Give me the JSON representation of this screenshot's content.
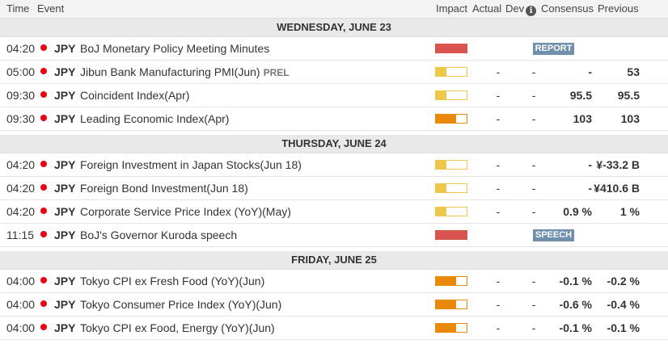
{
  "header": {
    "time": "Time",
    "event": "Event",
    "impact": "Impact",
    "actual": "Actual",
    "dev": "Dev",
    "info_glyph": "i",
    "consensus": "Consensus",
    "previous": "Previous"
  },
  "impact_colors": {
    "high": "#d9534f",
    "medium": "#e8890c",
    "low": "#eec84a"
  },
  "days": [
    {
      "label": "WEDNESDAY, JUNE 23",
      "events": [
        {
          "time": "04:20",
          "currency": "JPY",
          "name": "BoJ Monetary Policy Meeting Minutes",
          "tag": "",
          "impact": "high",
          "impact_level": 1.0,
          "actual": "",
          "dev": "",
          "consensus": "",
          "previous": "",
          "badge": "REPORT"
        },
        {
          "time": "05:00",
          "currency": "JPY",
          "name": "Jibun Bank Manufacturing PMI(Jun)",
          "tag": "PREL",
          "impact": "low",
          "impact_level": 0.33,
          "actual": "-",
          "dev": "-",
          "consensus": "-",
          "previous": "53",
          "badge": ""
        },
        {
          "time": "09:30",
          "currency": "JPY",
          "name": "Coincident Index(Apr)",
          "tag": "",
          "impact": "low",
          "impact_level": 0.33,
          "actual": "-",
          "dev": "-",
          "consensus": "95.5",
          "previous": "95.5",
          "badge": ""
        },
        {
          "time": "09:30",
          "currency": "JPY",
          "name": "Leading Economic Index(Apr)",
          "tag": "",
          "impact": "medium",
          "impact_level": 0.66,
          "actual": "-",
          "dev": "-",
          "consensus": "103",
          "previous": "103",
          "badge": ""
        }
      ]
    },
    {
      "label": "THURSDAY, JUNE 24",
      "events": [
        {
          "time": "04:20",
          "currency": "JPY",
          "name": "Foreign Investment in Japan Stocks(Jun 18)",
          "tag": "",
          "impact": "low",
          "impact_level": 0.33,
          "actual": "-",
          "dev": "-",
          "consensus": "-",
          "previous": "¥-33.2 B",
          "badge": ""
        },
        {
          "time": "04:20",
          "currency": "JPY",
          "name": "Foreign Bond Investment(Jun 18)",
          "tag": "",
          "impact": "low",
          "impact_level": 0.33,
          "actual": "-",
          "dev": "-",
          "consensus": "-",
          "previous": "¥410.6 B",
          "badge": ""
        },
        {
          "time": "04:20",
          "currency": "JPY",
          "name": "Corporate Service Price Index (YoY)(May)",
          "tag": "",
          "impact": "low",
          "impact_level": 0.33,
          "actual": "-",
          "dev": "-",
          "consensus": "0.9 %",
          "previous": "1 %",
          "badge": ""
        },
        {
          "time": "11:15",
          "currency": "JPY",
          "name": "BoJ's Governor Kuroda speech",
          "tag": "",
          "impact": "high",
          "impact_level": 1.0,
          "actual": "",
          "dev": "",
          "consensus": "",
          "previous": "",
          "badge": "SPEECH"
        }
      ]
    },
    {
      "label": "FRIDAY, JUNE 25",
      "events": [
        {
          "time": "04:00",
          "currency": "JPY",
          "name": "Tokyo CPI ex Fresh Food (YoY)(Jun)",
          "tag": "",
          "impact": "medium",
          "impact_level": 0.66,
          "actual": "-",
          "dev": "-",
          "consensus": "-0.1 %",
          "previous": "-0.2 %",
          "badge": ""
        },
        {
          "time": "04:00",
          "currency": "JPY",
          "name": "Tokyo Consumer Price Index (YoY)(Jun)",
          "tag": "",
          "impact": "medium",
          "impact_level": 0.66,
          "actual": "-",
          "dev": "-",
          "consensus": "-0.6 %",
          "previous": "-0.4 %",
          "badge": ""
        },
        {
          "time": "04:00",
          "currency": "JPY",
          "name": "Tokyo CPI ex Food, Energy (YoY)(Jun)",
          "tag": "",
          "impact": "medium",
          "impact_level": 0.66,
          "actual": "-",
          "dev": "-",
          "consensus": "-0.1 %",
          "previous": "-0.1 %",
          "badge": ""
        }
      ]
    }
  ]
}
